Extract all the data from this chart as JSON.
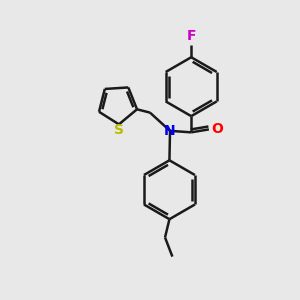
{
  "background_color": "#e8e8e8",
  "bond_color": "#1a1a1a",
  "bond_width": 1.8,
  "atom_colors": {
    "F": "#cc00cc",
    "O": "#ff0000",
    "N": "#0000ee",
    "S": "#bbbb00"
  },
  "font_size": 10,
  "figsize": [
    3.0,
    3.0
  ],
  "dpi": 100
}
